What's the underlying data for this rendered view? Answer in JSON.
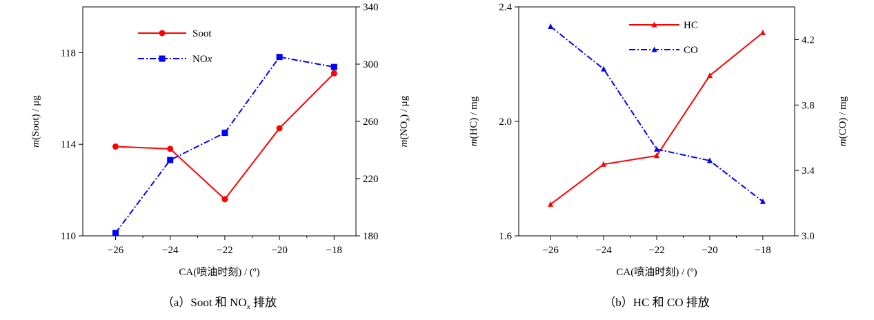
{
  "chart_data": [
    {
      "id": "a",
      "type": "line",
      "caption": {
        "prefix": "（a）",
        "main": "Soot 和 NO",
        "sub": "x",
        "suffix": " 排放"
      },
      "xlabel": "CA(喷油时刻) / (º)",
      "ylabel_left": {
        "italic": "m",
        "rest": "(Soot) / μg"
      },
      "ylabel_right": {
        "italic": "m",
        "rest": "(NO",
        "sub": "x",
        "tail": ") / μg"
      },
      "x": [
        -26,
        -24,
        -22,
        -20,
        -18
      ],
      "xlim": [
        -27.2,
        -17.2
      ],
      "xticks": [
        -26,
        -24,
        -22,
        -20,
        -18
      ],
      "xtick_labels": [
        "−26",
        "−24",
        "−22",
        "−20",
        "−18"
      ],
      "ylim_left": [
        110,
        120
      ],
      "yticks_left": [
        110,
        114,
        118
      ],
      "ylim_right": [
        180,
        340
      ],
      "yticks_right": [
        180,
        220,
        260,
        300,
        340
      ],
      "series": [
        {
          "name": "Soot",
          "axis": "left",
          "color": "#ff0000",
          "dash": "solid",
          "marker": "circle",
          "values": [
            113.9,
            113.8,
            111.6,
            114.7,
            117.1
          ]
        },
        {
          "name": "NOx",
          "name_main": "NO",
          "name_italic": "x",
          "axis": "right",
          "color": "#0000ff",
          "dash": "dashdot",
          "marker": "square",
          "values": [
            182,
            233,
            252,
            305,
            298
          ]
        }
      ]
    },
    {
      "id": "b",
      "type": "line",
      "caption": {
        "prefix": "（b）",
        "main": "HC 和 CO 排放"
      },
      "xlabel": "CA(喷油时刻) / (º)",
      "ylabel_left": {
        "italic": "m",
        "rest": "(HC) / mg"
      },
      "ylabel_right": {
        "italic": "m",
        "rest": "(CO) / mg"
      },
      "x": [
        -26,
        -24,
        -22,
        -20,
        -18
      ],
      "xlim": [
        -27.2,
        -16.8
      ],
      "xticks": [
        -26,
        -24,
        -22,
        -20,
        -18
      ],
      "xtick_labels": [
        "−26",
        "−24",
        "−22",
        "−20",
        "−18"
      ],
      "ylim_left": [
        1.6,
        2.4
      ],
      "yticks_left": [
        1.6,
        2.0,
        2.4
      ],
      "ytick_labels_left": [
        "1.6",
        "2.0",
        "2.4"
      ],
      "ylim_right": [
        3.0,
        4.4
      ],
      "yticks_right": [
        3.0,
        3.4,
        3.8,
        4.2
      ],
      "ytick_labels_right": [
        "3.0",
        "3.4",
        "3.8",
        "4.2"
      ],
      "series": [
        {
          "name": "HC",
          "axis": "left",
          "color": "#ff0000",
          "dash": "solid",
          "marker": "triangle",
          "values": [
            1.71,
            1.85,
            1.88,
            2.16,
            2.31
          ]
        },
        {
          "name": "CO",
          "axis": "right",
          "color": "#0000ff",
          "dash": "dashdot",
          "marker": "triangle",
          "values": [
            4.28,
            4.02,
            3.53,
            3.46,
            3.21
          ]
        }
      ]
    }
  ]
}
